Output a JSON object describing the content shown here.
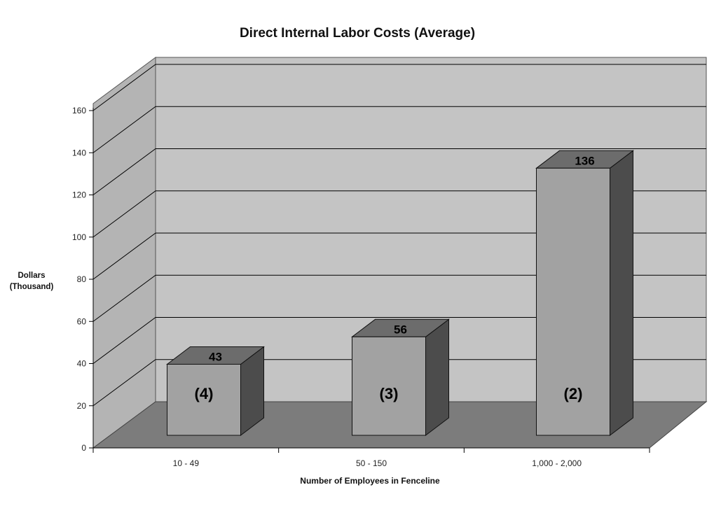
{
  "chart_data": {
    "type": "bar",
    "title": "Direct Internal Labor Costs (Average)",
    "ylabel_lines": [
      "Dollars",
      "(Thousand)"
    ],
    "xlabel": "Number of Employees in Fenceline",
    "categories": [
      "10 - 49",
      "50 - 150",
      "1,000 - 2,000"
    ],
    "values": [
      43,
      56,
      136
    ],
    "value_labels": [
      "43",
      "56",
      "136"
    ],
    "inner_labels": [
      "(4)",
      "(3)",
      "(2)"
    ],
    "ylim": [
      0,
      160
    ],
    "yticks": [
      0,
      20,
      40,
      60,
      80,
      100,
      120,
      140,
      160
    ],
    "grid": true,
    "legend": "none",
    "colors": {
      "back_wall": "#c4c4c4",
      "side_wall": "#b4b4b4",
      "floor": "#7c7c7c",
      "bar_front": "#a2a2a2",
      "bar_side": "#4c4c4c",
      "bar_top": "#6c6c6c",
      "grid": "#000000"
    }
  }
}
